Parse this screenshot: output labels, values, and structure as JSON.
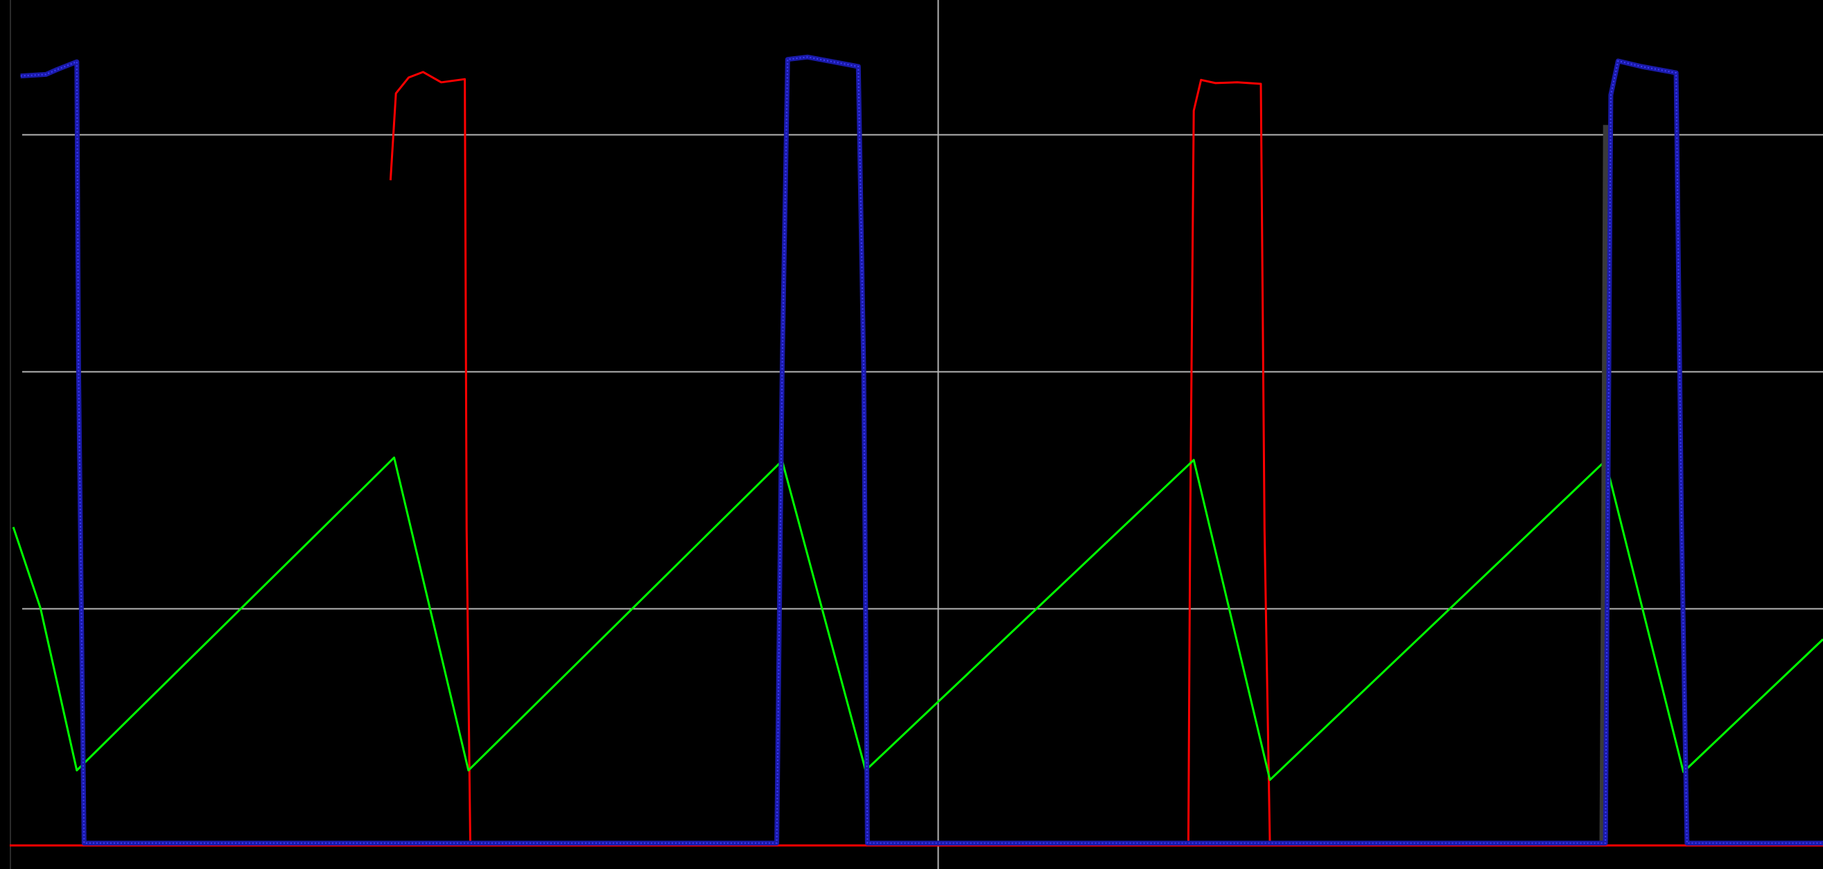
{
  "chart_data": {
    "type": "line",
    "title": "",
    "xlabel": "",
    "ylabel": "",
    "grid": true,
    "legend": "none",
    "xlim": [
      0,
      100
    ],
    "ylim": [
      0,
      100
    ],
    "hgrid_y": [
      30,
      60,
      90
    ],
    "vgrid_x": [
      51.2
    ],
    "background_color": "#000000",
    "grid_color": "#b4b4b4",
    "series": [
      {
        "color": "#00ff00",
        "points": [
          [
            0.2,
            40.3
          ],
          [
            1.7,
            30.0
          ],
          [
            3.7,
            9.5
          ],
          [
            21.2,
            49.1
          ],
          [
            25.3,
            9.5
          ],
          [
            42.6,
            48.7
          ],
          [
            47.2,
            9.5
          ],
          [
            65.3,
            48.8
          ],
          [
            69.5,
            8.3
          ],
          [
            88.0,
            48.7
          ],
          [
            92.3,
            9.3
          ],
          [
            100,
            26.1
          ]
        ]
      },
      {
        "color": "#ff0000",
        "segments": [
          [
            [
              21.0,
              84.2
            ],
            [
              21.3,
              95.2
            ],
            [
              22.0,
              97.2
            ],
            [
              22.8,
              97.9
            ],
            [
              23.8,
              96.6
            ],
            [
              25.1,
              97.0
            ],
            [
              25.2,
              40.0
            ],
            [
              25.4,
              0.0
            ]
          ],
          [
            [
              65.0,
              0.0
            ],
            [
              65.1,
              40.0
            ],
            [
              65.3,
              93.0
            ],
            [
              65.7,
              96.9
            ],
            [
              66.5,
              96.5
            ],
            [
              67.7,
              96.6
            ],
            [
              69.0,
              96.4
            ],
            [
              69.2,
              40.0
            ],
            [
              69.5,
              0.0
            ]
          ]
        ],
        "baseline": 0.0
      },
      {
        "color": "#1a1aa8",
        "segments": [
          [
            [
              0.6,
              97.4
            ],
            [
              2.0,
              97.6
            ],
            [
              2.6,
              98.2
            ],
            [
              3.7,
              99.2
            ],
            [
              3.8,
              60.0
            ],
            [
              4.1,
              0.3
            ],
            [
              42.3,
              0.3
            ],
            [
              42.6,
              60.0
            ],
            [
              42.9,
              99.5
            ],
            [
              44.0,
              99.8
            ],
            [
              46.8,
              98.6
            ],
            [
              47.1,
              60.0
            ],
            [
              47.3,
              0.3
            ],
            [
              88.0,
              0.3
            ],
            [
              88.3,
              95.0
            ],
            [
              88.7,
              99.3
            ],
            [
              90.0,
              98.6
            ],
            [
              91.9,
              97.8
            ],
            [
              92.2,
              40.0
            ],
            [
              92.5,
              0.3
            ],
            [
              100,
              0.3
            ]
          ]
        ]
      },
      {
        "color": "#3a3a3a",
        "segments": [
          [
            [
              87.9,
              0.3
            ],
            [
              88.0,
              40.0
            ],
            [
              88.1,
              91.2
            ]
          ]
        ]
      }
    ]
  }
}
